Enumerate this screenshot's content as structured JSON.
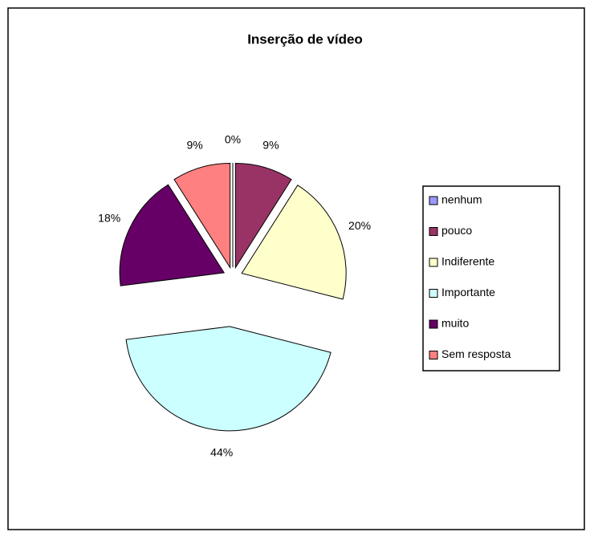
{
  "chart_data": {
    "type": "pie",
    "title": "Inserção de vídeo",
    "categories": [
      "nenhum",
      "pouco",
      "Indiferente",
      "Importante",
      "muito",
      "Sem resposta"
    ],
    "values": [
      0,
      9,
      20,
      44,
      18,
      9
    ],
    "value_labels": [
      "0%",
      "9%",
      "20%",
      "44%",
      "18%",
      "9%"
    ],
    "colors": [
      "#9999ff",
      "#993366",
      "#ffffcc",
      "#ccffff",
      "#660066",
      "#ff8080"
    ],
    "legend": "right"
  }
}
